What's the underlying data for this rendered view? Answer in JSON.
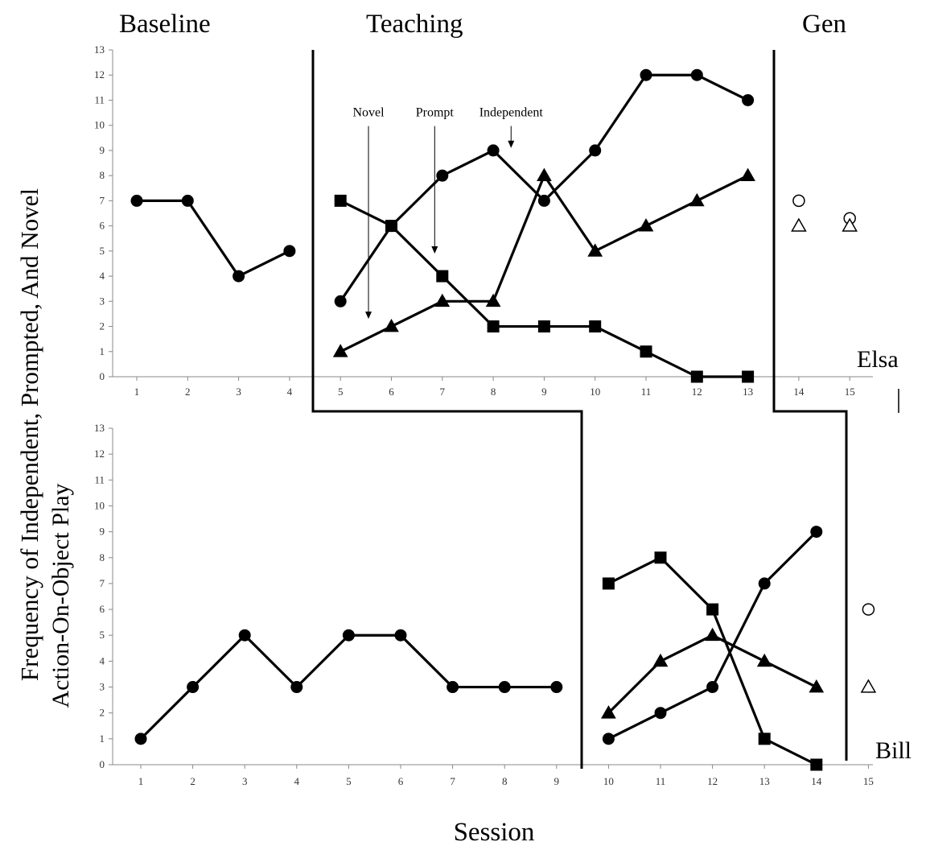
{
  "chart_data": {
    "type": "line",
    "y_axis_title_line1": "Frequency of Independent, Prompted, And Novel",
    "y_axis_title_line2": "Action-On-Object Play",
    "x_axis_title": "Session",
    "phase_labels": [
      "Baseline",
      "Teaching",
      "Gen"
    ],
    "panels": [
      {
        "participant": "Elsa",
        "x_ticks": [
          1,
          2,
          3,
          4,
          5,
          6,
          7,
          8,
          9,
          10,
          11,
          12,
          13,
          14,
          15
        ],
        "ylim": [
          0,
          13
        ],
        "y_ticks": [
          0,
          1,
          2,
          3,
          4,
          5,
          6,
          7,
          8,
          9,
          10,
          11,
          12,
          13
        ],
        "series": [
          {
            "marker": "circle-filled",
            "segments": [
              [
                [
                  1,
                  7
                ],
                [
                  2,
                  7
                ],
                [
                  3,
                  4
                ],
                [
                  4,
                  5
                ]
              ],
              [
                [
                  5,
                  3
                ],
                [
                  6,
                  6
                ],
                [
                  7,
                  8
                ],
                [
                  8,
                  9
                ],
                [
                  9,
                  7
                ],
                [
                  10,
                  9
                ],
                [
                  11,
                  12
                ],
                [
                  12,
                  12
                ],
                [
                  13,
                  11
                ]
              ]
            ]
          },
          {
            "marker": "square-filled",
            "segments": [
              [
                [
                  5,
                  7
                ],
                [
                  6,
                  6
                ],
                [
                  7,
                  4
                ],
                [
                  8,
                  2
                ],
                [
                  9,
                  2
                ],
                [
                  10,
                  2
                ],
                [
                  11,
                  1
                ],
                [
                  12,
                  0
                ],
                [
                  13,
                  0
                ]
              ]
            ]
          },
          {
            "marker": "triangle-filled",
            "segments": [
              [
                [
                  5,
                  1
                ],
                [
                  6,
                  2
                ],
                [
                  7,
                  3
                ],
                [
                  8,
                  3
                ],
                [
                  9,
                  8
                ],
                [
                  10,
                  5
                ],
                [
                  11,
                  6
                ],
                [
                  12,
                  7
                ],
                [
                  13,
                  8
                ]
              ]
            ]
          },
          {
            "marker": "circle-open",
            "segments": [
              [
                [
                  14,
                  7
                ],
                [
                  15,
                  6.3
                ]
              ]
            ],
            "connected": false
          },
          {
            "marker": "triangle-open",
            "segments": [
              [
                [
                  14,
                  6
                ],
                [
                  15,
                  6
                ]
              ]
            ],
            "connected": false
          }
        ],
        "annotations": [
          {
            "text": "Novel",
            "x": 5.55,
            "y_from": 10.1,
            "y_to": 2.3
          },
          {
            "text": "Prompt",
            "x": 6.85,
            "y_from": 10.1,
            "y_to": 4.9
          },
          {
            "text": "Independent",
            "x": 8.35,
            "y_from": 10.1,
            "y_to": 9.1
          }
        ]
      },
      {
        "participant": "Bill",
        "x_ticks": [
          1,
          2,
          3,
          4,
          5,
          6,
          7,
          8,
          9,
          10,
          11,
          12,
          13,
          14,
          15
        ],
        "ylim": [
          0,
          13
        ],
        "y_ticks": [
          0,
          1,
          2,
          3,
          4,
          5,
          6,
          7,
          8,
          9,
          10,
          11,
          12,
          13
        ],
        "series": [
          {
            "marker": "circle-filled",
            "segments": [
              [
                [
                  1,
                  1
                ],
                [
                  2,
                  3
                ],
                [
                  3,
                  5
                ],
                [
                  4,
                  3
                ],
                [
                  5,
                  5
                ],
                [
                  6,
                  5
                ],
                [
                  7,
                  3
                ],
                [
                  8,
                  3
                ],
                [
                  9,
                  3
                ]
              ],
              [
                [
                  10,
                  1
                ],
                [
                  11,
                  2
                ],
                [
                  12,
                  3
                ],
                [
                  13,
                  7
                ],
                [
                  14,
                  9
                ]
              ]
            ]
          },
          {
            "marker": "square-filled",
            "segments": [
              [
                [
                  10,
                  7
                ],
                [
                  11,
                  8
                ],
                [
                  12,
                  6
                ],
                [
                  13,
                  1
                ],
                [
                  14,
                  0
                ]
              ]
            ]
          },
          {
            "marker": "triangle-filled",
            "segments": [
              [
                [
                  10,
                  2
                ],
                [
                  11,
                  4
                ],
                [
                  12,
                  5
                ],
                [
                  13,
                  4
                ],
                [
                  14,
                  3
                ]
              ]
            ]
          },
          {
            "marker": "circle-open",
            "segments": [
              [
                [
                  15,
                  6
                ]
              ]
            ],
            "connected": false
          },
          {
            "marker": "triangle-open",
            "segments": [
              [
                [
                  15,
                  3
                ]
              ]
            ],
            "connected": false
          }
        ],
        "annotations": []
      }
    ],
    "grid": false,
    "legend": "none"
  }
}
